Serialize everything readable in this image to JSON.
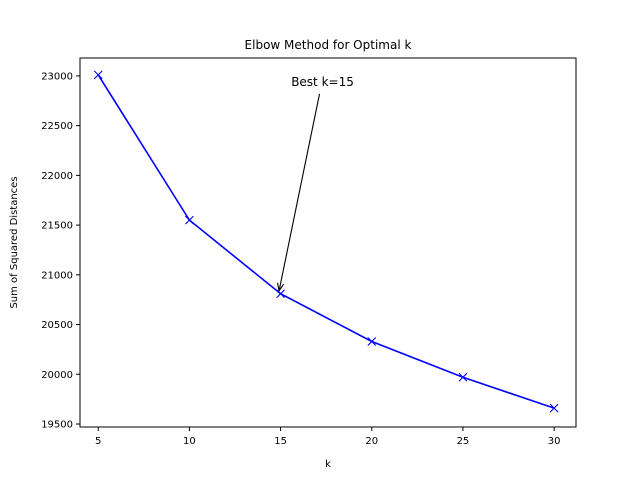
{
  "chart_data": {
    "type": "line",
    "title": "Elbow Method for Optimal k",
    "xlabel": "k",
    "ylabel": "Sum of Squared Distances",
    "xlim": [
      4,
      31.2
    ],
    "ylim": [
      19470,
      23180
    ],
    "xticks": [
      5,
      10,
      15,
      20,
      25,
      30
    ],
    "yticks": [
      19500,
      20000,
      20500,
      21000,
      21500,
      22000,
      22500,
      23000
    ],
    "grid": false,
    "series": [
      {
        "color": "#0000ff",
        "marker": "x",
        "x": [
          5,
          10,
          15,
          20,
          25,
          30
        ],
        "y": [
          23010,
          21550,
          20810,
          20330,
          19970,
          19660
        ]
      }
    ],
    "annotations": [
      {
        "text": "Best k=15",
        "x": 15,
        "y": 20810,
        "text_x": 17.3,
        "text_y": 22900
      }
    ]
  }
}
